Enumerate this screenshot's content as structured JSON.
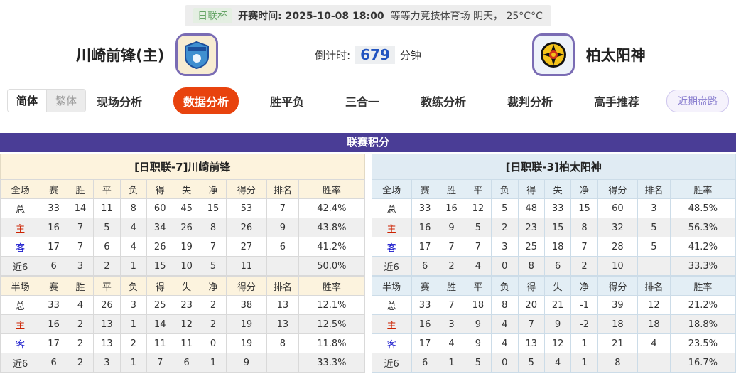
{
  "topbar": {
    "league_tag": "日联杯",
    "kickoff": "开赛时间: 2025-10-08 18:00",
    "venue_weather": "等等力竞技体育场 阴天， 25°C°C"
  },
  "header": {
    "home_team": "川崎前锋(主)",
    "away_team": "柏太阳神",
    "countdown_label": "倒计时:",
    "countdown_value": "679",
    "countdown_unit": "分钟"
  },
  "nav": {
    "lang_simplified": "简体",
    "lang_traditional": "繁体",
    "tabs": [
      {
        "label": "现场分析",
        "active": false
      },
      {
        "label": "数据分析",
        "active": true
      },
      {
        "label": "胜平负",
        "active": false
      },
      {
        "label": "三合一",
        "active": false
      },
      {
        "label": "教练分析",
        "active": false
      },
      {
        "label": "裁判分析",
        "active": false
      },
      {
        "label": "高手推荐",
        "active": false
      }
    ],
    "recent_button": "近期盘路"
  },
  "league": {
    "title": "联赛积分",
    "full_columns": [
      "全场",
      "赛",
      "胜",
      "平",
      "负",
      "得",
      "失",
      "净",
      "得分",
      "排名",
      "胜率"
    ],
    "half_columns": [
      "半场",
      "赛",
      "胜",
      "平",
      "负",
      "得",
      "失",
      "净",
      "得分",
      "排名",
      "胜率"
    ],
    "teams": [
      {
        "header": "[日职联-7]川崎前锋",
        "full_rows": [
          {
            "label": "总",
            "type": "total",
            "values": [
              33,
              14,
              11,
              8,
              60,
              45,
              15,
              53,
              7,
              "42.4%"
            ]
          },
          {
            "label": "主",
            "type": "home",
            "values": [
              16,
              7,
              5,
              4,
              34,
              26,
              8,
              26,
              9,
              "43.8%"
            ]
          },
          {
            "label": "客",
            "type": "away",
            "values": [
              17,
              7,
              6,
              4,
              26,
              19,
              7,
              27,
              6,
              "41.2%"
            ]
          },
          {
            "label": "近6",
            "type": "recent",
            "values": [
              6,
              3,
              2,
              1,
              15,
              10,
              5,
              11,
              "",
              "50.0%"
            ]
          }
        ],
        "half_rows": [
          {
            "label": "总",
            "type": "total",
            "values": [
              33,
              4,
              26,
              3,
              25,
              23,
              2,
              38,
              13,
              "12.1%"
            ]
          },
          {
            "label": "主",
            "type": "home",
            "values": [
              16,
              2,
              13,
              1,
              14,
              12,
              2,
              19,
              13,
              "12.5%"
            ]
          },
          {
            "label": "客",
            "type": "away",
            "values": [
              17,
              2,
              13,
              2,
              11,
              11,
              0,
              19,
              8,
              "11.8%"
            ]
          },
          {
            "label": "近6",
            "type": "recent",
            "values": [
              6,
              2,
              3,
              1,
              7,
              6,
              1,
              9,
              "",
              "33.3%"
            ]
          }
        ]
      },
      {
        "header": "[日职联-3]柏太阳神",
        "full_rows": [
          {
            "label": "总",
            "type": "total",
            "values": [
              33,
              16,
              12,
              5,
              48,
              33,
              15,
              60,
              3,
              "48.5%"
            ]
          },
          {
            "label": "主",
            "type": "home",
            "values": [
              16,
              9,
              5,
              2,
              23,
              15,
              8,
              32,
              5,
              "56.3%"
            ]
          },
          {
            "label": "客",
            "type": "away",
            "values": [
              17,
              7,
              7,
              3,
              25,
              18,
              7,
              28,
              5,
              "41.2%"
            ]
          },
          {
            "label": "近6",
            "type": "recent",
            "values": [
              6,
              2,
              4,
              0,
              8,
              6,
              2,
              10,
              "",
              "33.3%"
            ]
          }
        ],
        "half_rows": [
          {
            "label": "总",
            "type": "total",
            "values": [
              33,
              7,
              18,
              8,
              20,
              21,
              -1,
              39,
              12,
              "21.2%"
            ]
          },
          {
            "label": "主",
            "type": "home",
            "values": [
              16,
              3,
              9,
              4,
              7,
              9,
              -2,
              18,
              18,
              "18.8%"
            ]
          },
          {
            "label": "客",
            "type": "away",
            "values": [
              17,
              4,
              9,
              4,
              13,
              12,
              1,
              21,
              4,
              "23.5%"
            ]
          },
          {
            "label": "近6",
            "type": "recent",
            "values": [
              6,
              1,
              5,
              0,
              5,
              4,
              1,
              8,
              "",
              "16.7%"
            ]
          }
        ]
      }
    ]
  },
  "colors": {
    "accent_orange": "#e8430e",
    "band_purple": "#4a3d96",
    "home_row_red": "#cc2200",
    "away_row_blue": "#1515cc",
    "countdown_blue": "#2153c0",
    "league_tag_green": "#67a567"
  }
}
